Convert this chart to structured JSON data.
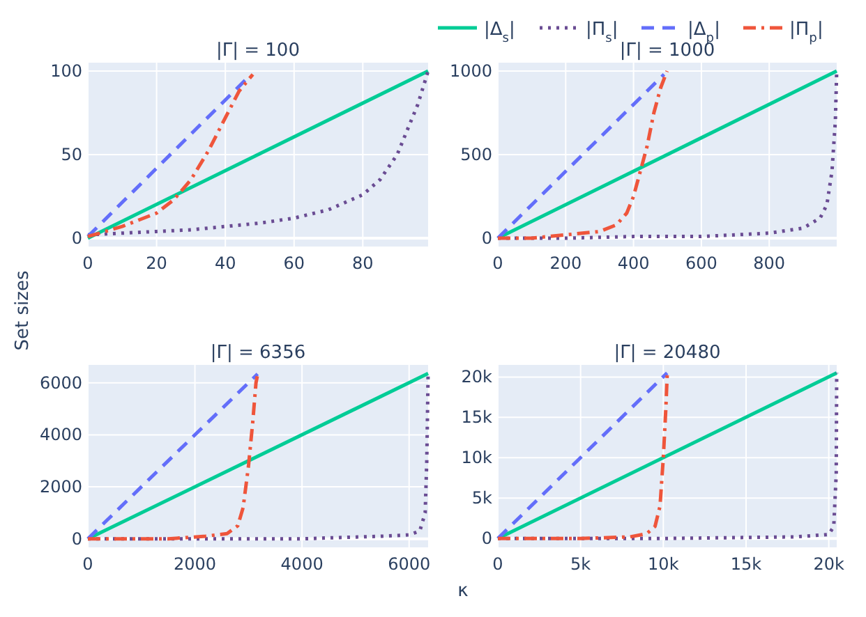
{
  "chart_data": [
    {
      "type": "line",
      "title": "|Γ| = 100",
      "ylabel": "Set sizes",
      "legend": "top right",
      "grid": true,
      "xlim": [
        0,
        99
      ],
      "xticks": [
        0,
        20,
        40,
        60,
        80
      ],
      "ylim": [
        -5,
        105
      ],
      "yticks": [
        0,
        50,
        100
      ],
      "series": [
        {
          "name": "|Δ$_{s}$|",
          "color": "#00cc96",
          "line_style": "solid",
          "x": [
            0,
            99
          ],
          "values": [
            0,
            100
          ]
        },
        {
          "name": "|Π$_{s}$|",
          "color": "#6a4c93",
          "line_style": "dotted",
          "x": [
            0,
            10,
            20,
            30,
            40,
            50,
            60,
            70,
            80,
            85,
            90,
            93,
            96,
            99
          ],
          "values": [
            2,
            3,
            4,
            5,
            7,
            9,
            12,
            17,
            26,
            35,
            50,
            65,
            80,
            100
          ]
        },
        {
          "name": "|Δ$_{p}$|",
          "color": "#636efa",
          "line_style": "dashed",
          "x": [
            0,
            47
          ],
          "values": [
            1,
            97
          ]
        },
        {
          "name": "|Π$_{p}$|",
          "color": "#ef553b",
          "line_style": "dashdot",
          "x": [
            0,
            10,
            20,
            25,
            30,
            35,
            40,
            44,
            48
          ],
          "values": [
            1,
            7,
            15,
            23,
            35,
            52,
            72,
            88,
            98
          ]
        }
      ]
    },
    {
      "type": "line",
      "title": "|Γ| = 1000",
      "grid": true,
      "xlim": [
        0,
        999
      ],
      "xticks": [
        0,
        200,
        400,
        600,
        800
      ],
      "ylim": [
        -50,
        1050
      ],
      "yticks": [
        0,
        500,
        1000
      ],
      "series": [
        {
          "color": "#00cc96",
          "line_style": "solid",
          "x": [
            0,
            999
          ],
          "values": [
            0,
            1000
          ]
        },
        {
          "color": "#6a4c93",
          "line_style": "dotted",
          "x": [
            0,
            200,
            400,
            600,
            700,
            800,
            900,
            950,
            970,
            985,
            995,
            999
          ],
          "values": [
            0,
            0,
            10,
            10,
            20,
            30,
            60,
            120,
            200,
            400,
            700,
            1000
          ]
        },
        {
          "color": "#636efa",
          "line_style": "dashed",
          "x": [
            0,
            490
          ],
          "values": [
            0,
            980
          ]
        },
        {
          "color": "#ef553b",
          "line_style": "dashdot",
          "x": [
            0,
            100,
            200,
            300,
            350,
            380,
            400,
            420,
            440,
            460,
            480,
            499
          ],
          "values": [
            0,
            0,
            20,
            40,
            80,
            150,
            250,
            400,
            550,
            750,
            900,
            1000
          ]
        }
      ]
    },
    {
      "type": "line",
      "title": "|Γ| = 6356",
      "grid": true,
      "xlim": [
        0,
        6355
      ],
      "xticks": [
        0,
        2000,
        4000,
        6000
      ],
      "ylim": [
        -330,
        6690
      ],
      "yticks": [
        0,
        2000,
        4000,
        6000
      ],
      "series": [
        {
          "color": "#00cc96",
          "line_style": "solid",
          "x": [
            0,
            6355
          ],
          "values": [
            0,
            6360
          ]
        },
        {
          "color": "#6a4c93",
          "line_style": "dotted",
          "x": [
            0,
            2000,
            4000,
            5500,
            6000,
            6200,
            6300,
            6330,
            6355
          ],
          "values": [
            0,
            0,
            0,
            100,
            150,
            300,
            1000,
            3000,
            6360
          ]
        },
        {
          "color": "#636efa",
          "line_style": "dashed",
          "x": [
            0,
            3170
          ],
          "values": [
            0,
            6340
          ]
        },
        {
          "color": "#ef553b",
          "line_style": "dashdot",
          "x": [
            0,
            1500,
            2200,
            2600,
            2800,
            2900,
            3000,
            3080,
            3140,
            3175
          ],
          "values": [
            0,
            0,
            100,
            200,
            500,
            1200,
            2800,
            4500,
            6000,
            6360
          ]
        }
      ]
    },
    {
      "type": "line",
      "title": "|Γ| = 20480",
      "xlabel": "κ",
      "grid": true,
      "xlim": [
        0,
        20479
      ],
      "xticks": [
        0,
        {
          "value": 5000,
          "label": "5k"
        },
        {
          "value": 10000,
          "label": "10k"
        },
        {
          "value": 15000,
          "label": "15k"
        },
        {
          "value": 20000,
          "label": "20k"
        }
      ],
      "ylim": [
        -1100,
        21500
      ],
      "yticks": [
        0,
        {
          "value": 5000,
          "label": "5k"
        },
        {
          "value": 10000,
          "label": "10k"
        },
        {
          "value": 15000,
          "label": "15k"
        },
        {
          "value": 20000,
          "label": "20k"
        }
      ],
      "series": [
        {
          "color": "#00cc96",
          "line_style": "solid",
          "x": [
            0,
            20479
          ],
          "values": [
            0,
            20500
          ]
        },
        {
          "color": "#6a4c93",
          "line_style": "dotted",
          "x": [
            0,
            10000,
            18000,
            20000,
            20300,
            20450,
            20479
          ],
          "values": [
            0,
            0,
            200,
            500,
            1500,
            8000,
            20500
          ]
        },
        {
          "color": "#636efa",
          "line_style": "dashed",
          "x": [
            0,
            10230
          ],
          "values": [
            0,
            20500
          ]
        },
        {
          "color": "#ef553b",
          "line_style": "dashdot",
          "x": [
            0,
            5000,
            8000,
            9000,
            9500,
            9800,
            10000,
            10150,
            10240
          ],
          "values": [
            0,
            0,
            200,
            600,
            1500,
            4000,
            10000,
            16000,
            20500
          ]
        }
      ]
    }
  ]
}
